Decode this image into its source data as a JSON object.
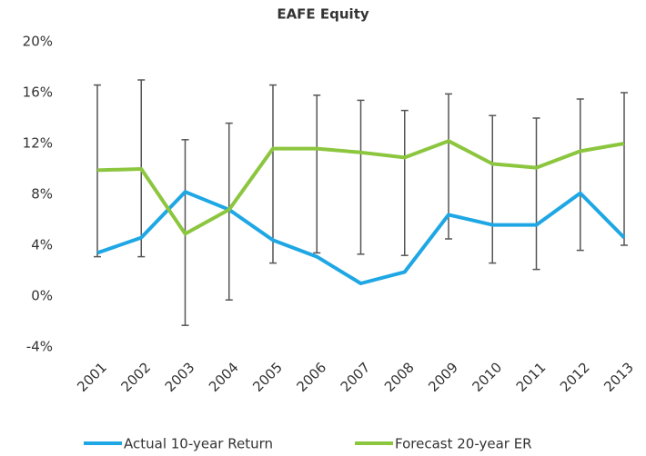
{
  "chart_data": {
    "type": "line",
    "title": "EAFE Equity",
    "categories": [
      "2001",
      "2002",
      "2003",
      "2004",
      "2005",
      "2006",
      "2007",
      "2008",
      "2009",
      "2010",
      "2011",
      "2012",
      "2013"
    ],
    "series": [
      {
        "name": "Actual 10-year Return",
        "color": "#1ea7e4",
        "values": [
          3.4,
          4.6,
          8.2,
          6.8,
          4.4,
          3.1,
          1.0,
          1.9,
          6.4,
          5.6,
          5.6,
          8.1,
          4.6
        ]
      },
      {
        "name": "Forecast 20-year ER",
        "color": "#8cc63f",
        "values": [
          9.9,
          10.0,
          4.9,
          6.8,
          11.6,
          11.6,
          11.3,
          10.9,
          12.2,
          10.4,
          10.1,
          11.4,
          12.0
        ]
      }
    ],
    "ranges": {
      "color": "#555555",
      "low": [
        3.1,
        3.1,
        -2.3,
        -0.3,
        2.6,
        3.4,
        3.3,
        3.2,
        4.5,
        2.6,
        2.1,
        3.6,
        4.0
      ],
      "high": [
        16.6,
        17.0,
        12.3,
        13.6,
        16.6,
        15.8,
        15.4,
        14.6,
        15.9,
        14.2,
        14.0,
        15.5,
        16.0
      ]
    },
    "ylim": [
      -4,
      20
    ],
    "yticks": [
      {
        "value": -4,
        "label": "-4%"
      },
      {
        "value": 0,
        "label": "0%"
      },
      {
        "value": 4,
        "label": "4%"
      },
      {
        "value": 8,
        "label": "8%"
      },
      {
        "value": 12,
        "label": "12%"
      },
      {
        "value": 16,
        "label": "16%"
      },
      {
        "value": 20,
        "label": "20%"
      }
    ],
    "legend": "bottom"
  }
}
